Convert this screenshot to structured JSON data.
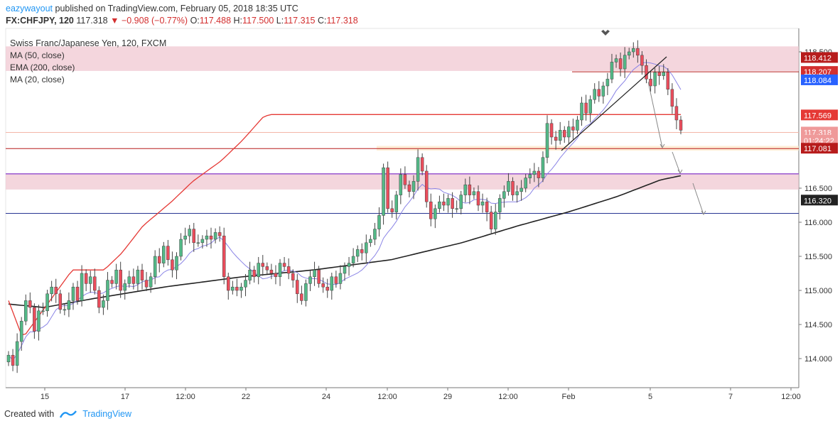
{
  "header": {
    "author": "eazywayout",
    "published_text": "published on TradingView.com, February 05, 2018 18:35 UTC",
    "symbol": "FX:CHFJPY, 120",
    "last": "117.318",
    "change": "▼ −0.908 (−0.77%)",
    "o_label": "O:",
    "o_value": "117.488",
    "h_label": "H:",
    "h_value": "117.500",
    "l_label": "L:",
    "l_value": "117.315",
    "c_label": "C:",
    "c_value": "117.318"
  },
  "legend": {
    "title": "Swiss Franc/Japanese Yen, 120, FXCM",
    "indicators": [
      "MA (50, close)",
      "EMA (200, close)",
      "MA (20, close)"
    ]
  },
  "footer": {
    "created_with": "Created with",
    "brand": "TradingView"
  },
  "colors": {
    "bull": "#53b987",
    "bear": "#eb4d5c",
    "ma50": "#e53935",
    "ema200": "#222222",
    "ma20": "#8a84e6",
    "zone": "#f0c8d2",
    "resistance": "#b71c1c",
    "support": "#6a1bcf",
    "blue_line": "#283593",
    "brand": "#2196f3"
  },
  "chart_data": {
    "type": "candlestick",
    "symbol": "CHFJPY",
    "timeframe": "120",
    "ylim": [
      113.5,
      118.75
    ],
    "y_ticks": [
      "114.000",
      "114.500",
      "115.000",
      "115.500",
      "116.000",
      "116.500",
      "118.500"
    ],
    "x_ticks": [
      "15",
      "17",
      "12:00",
      "22",
      "24",
      "12:00",
      "29",
      "12:00",
      "Feb",
      "5",
      "7",
      "12:00"
    ],
    "price_labels": [
      {
        "value": "118.412",
        "color": "#b71c1c"
      },
      {
        "value": "118.207",
        "color": "#d32f2f"
      },
      {
        "value": "118.084",
        "color": "#2962ff"
      },
      {
        "value": "117.569",
        "color": "#e53935"
      },
      {
        "value": "117.318",
        "color": "#ef9a9a"
      },
      {
        "value": "01:24:22",
        "color": "#ef9a9a"
      },
      {
        "value": "117.081",
        "color": "#b71c1c"
      },
      {
        "value": "116.320",
        "color": "#222222"
      }
    ],
    "horizontal_levels": [
      {
        "price": 118.207,
        "role": "resistance"
      },
      {
        "price": 117.081,
        "role": "resistance"
      },
      {
        "price": 116.71,
        "role": "support"
      },
      {
        "price": 116.13,
        "role": "support"
      }
    ],
    "zones": [
      [
        118.22,
        118.58
      ],
      [
        116.48,
        116.72
      ],
      [
        117.05,
        117.12
      ]
    ],
    "candles_close": [
      114.05,
      113.9,
      114.25,
      114.55,
      114.85,
      114.75,
      114.4,
      114.7,
      114.7,
      114.95,
      115.05,
      114.95,
      114.72,
      114.72,
      114.85,
      115.05,
      114.85,
      115.25,
      115.1,
      115.2,
      115.0,
      114.75,
      114.85,
      115.15,
      115.1,
      115.3,
      115.0,
      115.1,
      115.2,
      115.1,
      115.3,
      115.15,
      115.05,
      115.2,
      115.5,
      115.4,
      115.65,
      115.45,
      115.3,
      115.5,
      115.75,
      115.8,
      115.9,
      115.7,
      115.7,
      115.75,
      115.8,
      115.75,
      115.85,
      115.8,
      115.2,
      115.0,
      115.05,
      115.0,
      115.05,
      115.15,
      115.3,
      115.2,
      115.4,
      115.35,
      115.3,
      115.25,
      115.2,
      115.4,
      115.35,
      115.25,
      115.15,
      114.95,
      114.85,
      115.1,
      115.2,
      115.3,
      115.1,
      115.05,
      115.0,
      115.2,
      115.1,
      115.25,
      115.35,
      115.4,
      115.5,
      115.6,
      115.55,
      115.7,
      115.75,
      115.9,
      116.1,
      116.8,
      116.2,
      116.15,
      116.4,
      116.7,
      116.55,
      116.45,
      116.6,
      116.95,
      116.75,
      116.3,
      116.05,
      116.2,
      116.3,
      116.25,
      116.35,
      116.2,
      116.2,
      116.4,
      116.55,
      116.4,
      116.45,
      116.25,
      116.3,
      116.15,
      115.9,
      116.15,
      116.35,
      116.45,
      116.6,
      116.4,
      116.45,
      116.5,
      116.65,
      116.7,
      116.75,
      116.65,
      116.95,
      117.45,
      117.25,
      117.2,
      117.35,
      117.25,
      117.4,
      117.35,
      117.5,
      117.75,
      117.6,
      117.8,
      117.95,
      117.85,
      118.0,
      118.1,
      118.35,
      118.4,
      118.25,
      118.45,
      118.5,
      118.55,
      118.45,
      118.3,
      118.1,
      118.0,
      118.2,
      118.15,
      118.2,
      117.95,
      117.7,
      117.5,
      117.35
    ],
    "ma50_anchors": [
      [
        0,
        114.85
      ],
      [
        20,
        114.3
      ],
      [
        55,
        114.8
      ],
      [
        90,
        115.3
      ],
      [
        135,
        115.3
      ],
      [
        160,
        115.55
      ],
      [
        190,
        115.95
      ],
      [
        230,
        116.3
      ],
      [
        260,
        116.6
      ],
      [
        300,
        116.9
      ],
      [
        330,
        117.2
      ],
      [
        360,
        117.55
      ],
      [
        370,
        117.58
      ]
    ],
    "ema200_anchors": [
      [
        0,
        114.8
      ],
      [
        50,
        114.75
      ],
      [
        120,
        114.88
      ],
      [
        220,
        115.05
      ],
      [
        330,
        115.2
      ],
      [
        430,
        115.3
      ],
      [
        540,
        115.45
      ],
      [
        640,
        115.7
      ],
      [
        720,
        115.95
      ],
      [
        790,
        116.15
      ],
      [
        860,
        116.38
      ],
      [
        920,
        116.62
      ],
      [
        957,
        116.7
      ]
    ]
  }
}
